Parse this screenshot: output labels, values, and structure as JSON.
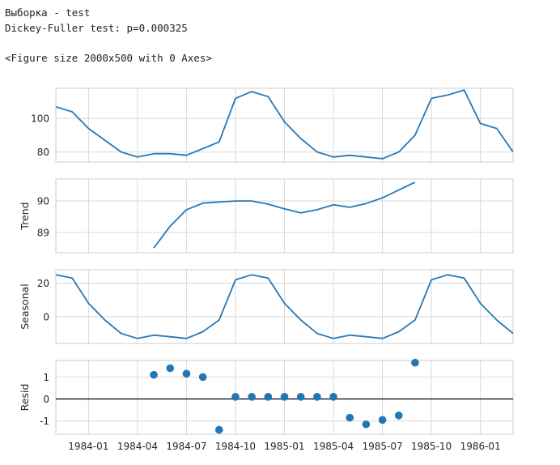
{
  "output": {
    "line1": "Выборка - test",
    "line2": "Dickey-Fuller test: p=0.000325",
    "line3": "<Figure size 2000x500 with 0 Axes>"
  },
  "style": {
    "line_color": "#2878b5",
    "point_color": "#1f77b4",
    "grid_color": "#d9d9d9",
    "frame_color": "#cccccc"
  },
  "chart_data": [
    {
      "type": "line",
      "ylabel": "",
      "x": [
        "1983-11",
        "1983-12",
        "1984-01",
        "1984-02",
        "1984-03",
        "1984-04",
        "1984-05",
        "1984-06",
        "1984-07",
        "1984-08",
        "1984-09",
        "1984-10",
        "1984-11",
        "1984-12",
        "1985-01",
        "1985-02",
        "1985-03",
        "1985-04",
        "1985-05",
        "1985-06",
        "1985-07",
        "1985-08",
        "1985-09",
        "1985-10",
        "1985-11",
        "1985-12",
        "1986-01",
        "1986-02",
        "1986-03"
      ],
      "values": [
        107,
        104,
        94,
        87,
        80,
        77,
        79,
        79,
        78,
        82,
        86,
        112,
        116,
        113,
        98,
        88,
        80,
        77,
        78,
        77,
        76,
        80,
        90,
        112,
        114,
        117,
        97,
        94,
        80
      ],
      "yticks": [
        80,
        100
      ],
      "ylim": [
        74,
        118
      ]
    },
    {
      "type": "line",
      "ylabel": "Trend",
      "x": [
        "1984-05",
        "1984-06",
        "1984-07",
        "1984-08",
        "1984-09",
        "1984-10",
        "1984-11",
        "1984-12",
        "1985-01",
        "1985-02",
        "1985-03",
        "1985-04",
        "1985-05",
        "1985-06",
        "1985-07",
        "1985-08",
        "1985-09"
      ],
      "values": [
        88.5,
        89.2,
        89.72,
        89.93,
        89.97,
        90.0,
        90.0,
        89.9,
        89.75,
        89.62,
        89.72,
        89.88,
        89.8,
        89.92,
        90.1,
        90.35,
        90.6
      ],
      "yticks": [
        89,
        90
      ],
      "ylim": [
        88.35,
        90.7
      ]
    },
    {
      "type": "line",
      "ylabel": "Seasonal",
      "x": [
        "1983-11",
        "1983-12",
        "1984-01",
        "1984-02",
        "1984-03",
        "1984-04",
        "1984-05",
        "1984-06",
        "1984-07",
        "1984-08",
        "1984-09",
        "1984-10",
        "1984-11",
        "1984-12",
        "1985-01",
        "1985-02",
        "1985-03",
        "1985-04",
        "1985-05",
        "1985-06",
        "1985-07",
        "1985-08",
        "1985-09",
        "1985-10",
        "1985-11",
        "1985-12",
        "1986-01",
        "1986-02",
        "1986-03"
      ],
      "values": [
        25,
        23,
        8,
        -2,
        -10,
        -13,
        -11,
        -12,
        -13,
        -9,
        -2,
        22,
        25,
        23,
        8,
        -2,
        -10,
        -13,
        -11,
        -12,
        -13,
        -9,
        -2,
        22,
        25,
        23,
        8,
        -2,
        -10
      ],
      "yticks": [
        0,
        20
      ],
      "ylim": [
        -16,
        28
      ]
    },
    {
      "type": "scatter",
      "ylabel": "Resid",
      "x": [
        "1984-05",
        "1984-06",
        "1984-07",
        "1984-08",
        "1984-09",
        "1984-10",
        "1984-11",
        "1984-12",
        "1985-01",
        "1985-02",
        "1985-03",
        "1985-04",
        "1985-05",
        "1985-06",
        "1985-07",
        "1985-08",
        "1985-09"
      ],
      "values": [
        1.1,
        1.4,
        1.15,
        1.0,
        -1.4,
        0.1,
        0.1,
        0.1,
        0.1,
        0.1,
        0.1,
        0.1,
        -0.85,
        -1.15,
        -0.95,
        -0.75,
        1.65
      ],
      "baseline": 0,
      "yticks": [
        -1,
        0,
        1
      ],
      "ylim": [
        -1.6,
        1.75
      ]
    }
  ],
  "x_axis": {
    "range": [
      "1983-11",
      "1986-03"
    ],
    "ticks": [
      "1984-01",
      "1984-04",
      "1984-07",
      "1984-10",
      "1985-01",
      "1985-04",
      "1985-07",
      "1985-10",
      "1986-01"
    ]
  }
}
